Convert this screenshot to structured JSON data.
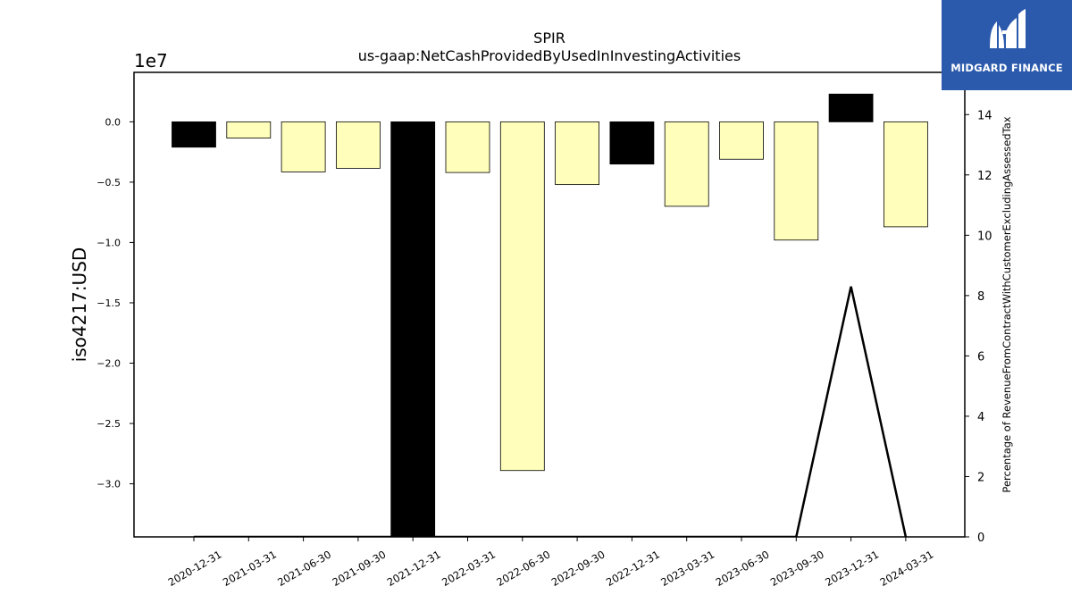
{
  "chart_data": {
    "type": "bar",
    "title": "SPIR",
    "subtitle": "us-gaap:NetCashProvidedByUsedInInvestingActivities",
    "ylabel": "iso4217:USD",
    "y_offset_label": "1e7",
    "y2label": "Percentage of RevenueFromContractWithCustomerExcludingAssessedTax",
    "ylim": [
      -34400000,
      4100000
    ],
    "y_ticks": [
      0.0,
      -0.5,
      -1.0,
      -1.5,
      -2.0,
      -2.5,
      -3.0
    ],
    "y_tick_labels": [
      "0.0",
      "−0.5",
      "−1.0",
      "−1.5",
      "−2.0",
      "−2.5",
      "−3.0"
    ],
    "y2lim": [
      0,
      15.4
    ],
    "y2_ticks": [
      0,
      2,
      4,
      6,
      8,
      10,
      12,
      14
    ],
    "y2_tick_labels": [
      "0",
      "2",
      "4",
      "6",
      "8",
      "10",
      "12",
      "14"
    ],
    "categories": [
      "2020-12-31",
      "2021-03-31",
      "2021-06-30",
      "2021-09-30",
      "2021-12-31",
      "2022-03-31",
      "2022-06-30",
      "2022-09-30",
      "2022-12-31",
      "2023-03-31",
      "2023-06-30",
      "2023-09-30",
      "2023-12-31",
      "2024-03-31"
    ],
    "values": [
      -2100000,
      -1350000,
      -4150000,
      -3850000,
      -34400000,
      -4200000,
      -28900000,
      -5200000,
      -3500000,
      -7000000,
      -3100000,
      -9800000,
      2300000,
      -8700000
    ],
    "bar_colors": [
      "#000000",
      "#ffffbb",
      "#ffffbb",
      "#ffffbb",
      "#000000",
      "#ffffbb",
      "#ffffbb",
      "#ffffbb",
      "#000000",
      "#ffffbb",
      "#ffffbb",
      "#ffffbb",
      "#000000",
      "#ffffbb"
    ],
    "series": [
      {
        "axis": "right",
        "type": "line",
        "values": [
          0,
          0,
          0,
          0,
          0,
          0,
          0,
          0,
          0,
          0,
          0,
          0,
          8.3,
          0
        ]
      }
    ],
    "grid": false,
    "legend": "none"
  },
  "logo": {
    "text": "MIDGARD FINANCE",
    "bg": "#2b5aad"
  }
}
